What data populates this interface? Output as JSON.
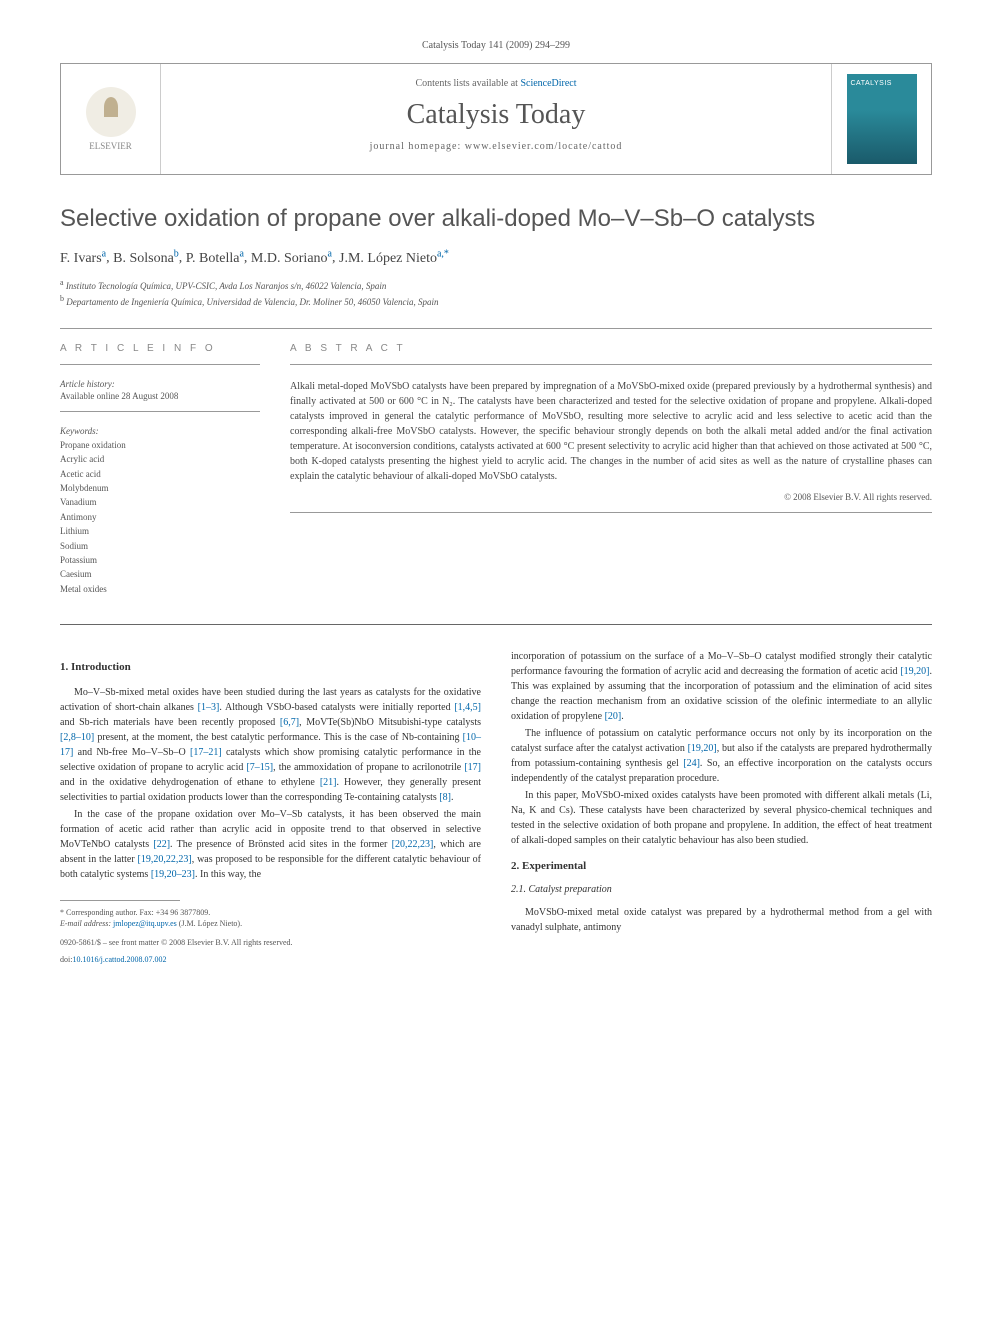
{
  "page_header": "Catalysis Today 141 (2009) 294–299",
  "header": {
    "publisher": "ELSEVIER",
    "contents_prefix": "Contents lists available at ",
    "contents_link": "ScienceDirect",
    "journal_title": "Catalysis Today",
    "homepage_prefix": "journal homepage: ",
    "homepage_url": "www.elsevier.com/locate/cattod"
  },
  "article": {
    "title": "Selective oxidation of propane over alkali-doped Mo–V–Sb–O catalysts",
    "authors_html": "F. Ivars|a|, B. Solsona|b|, P. Botella|a|, M.D. Soriano|a|, J.M. López Nieto|a,*|",
    "authors": [
      {
        "name": "F. Ivars",
        "aff": "a"
      },
      {
        "name": "B. Solsona",
        "aff": "b"
      },
      {
        "name": "P. Botella",
        "aff": "a"
      },
      {
        "name": "M.D. Soriano",
        "aff": "a"
      },
      {
        "name": "J.M. López Nieto",
        "aff": "a,*"
      }
    ],
    "affiliations": [
      {
        "sup": "a",
        "text": "Instituto Tecnología Química, UPV-CSIC, Avda Los Naranjos s/n, 46022 Valencia, Spain"
      },
      {
        "sup": "b",
        "text": "Departamento de Ingeniería Química, Universidad de Valencia, Dr. Moliner 50, 46050 Valencia, Spain"
      }
    ]
  },
  "info": {
    "heading": "A R T I C L E   I N F O",
    "history_label": "Article history:",
    "history_text": "Available online 28 August 2008",
    "keywords_label": "Keywords:",
    "keywords": [
      "Propane oxidation",
      "Acrylic acid",
      "Acetic acid",
      "Molybdenum",
      "Vanadium",
      "Antimony",
      "Lithium",
      "Sodium",
      "Potassium",
      "Caesium",
      "Metal oxides"
    ]
  },
  "abstract": {
    "heading": "A B S T R A C T",
    "text": "Alkali metal-doped MoVSbO catalysts have been prepared by impregnation of a MoVSbO-mixed oxide (prepared previously by a hydrothermal synthesis) and finally activated at 500 or 600 °C in N₂. The catalysts have been characterized and tested for the selective oxidation of propane and propylene. Alkali-doped catalysts improved in general the catalytic performance of MoVSbO, resulting more selective to acrylic acid and less selective to acetic acid than the corresponding alkali-free MoVSbO catalysts. However, the specific behaviour strongly depends on both the alkali metal added and/or the final activation temperature. At isoconversion conditions, catalysts activated at 600 °C present selectivity to acrylic acid higher than that achieved on those activated at 500 °C, both K-doped catalysts presenting the highest yield to acrylic acid. The changes in the number of acid sites as well as the nature of crystalline phases can explain the catalytic behaviour of alkali-doped MoVSbO catalysts.",
    "copyright": "© 2008 Elsevier B.V. All rights reserved."
  },
  "body": {
    "intro_heading": "1. Introduction",
    "intro_p1": "Mo–V–Sb-mixed metal oxides have been studied during the last years as catalysts for the oxidative activation of short-chain alkanes [1–3]. Although VSbO-based catalysts were initially reported [1,4,5] and Sb-rich materials have been recently proposed [6,7], MoVTe(Sb)NbO Mitsubishi-type catalysts [2,8–10] present, at the moment, the best catalytic performance. This is the case of Nb-containing [10–17] and Nb-free Mo–V–Sb–O [17–21] catalysts which show promising catalytic performance in the selective oxidation of propane to acrylic acid [7–15], the ammoxidation of propane to acrilonotrile [17] and in the oxidative dehydrogenation of ethane to ethylene [21]. However, they generally present selectivities to partial oxidation products lower than the corresponding Te-containing catalysts [8].",
    "intro_p2": "In the case of the propane oxidation over Mo–V–Sb catalysts, it has been observed the main formation of acetic acid rather than acrylic acid in opposite trend to that observed in selective MoVTeNbO catalysts [22]. The presence of Brönsted acid sites in the former [20,22,23], which are absent in the latter [19,20,22,23], was proposed to be responsible for the different catalytic behaviour of both catalytic systems [19,20–23]. In this way, the",
    "intro_p3": "incorporation of potassium on the surface of a Mo–V–Sb–O catalyst modified strongly their catalytic performance favouring the formation of acrylic acid and decreasing the formation of acetic acid [19,20]. This was explained by assuming that the incorporation of potassium and the elimination of acid sites change the reaction mechanism from an oxidative scission of the olefinic intermediate to an allylic oxidation of propylene [20].",
    "intro_p4": "The influence of potassium on catalytic performance occurs not only by its incorporation on the catalyst surface after the catalyst activation [19,20], but also if the catalysts are prepared hydrothermally from potassium-containing synthesis gel [24]. So, an effective incorporation on the catalysts occurs independently of the catalyst preparation procedure.",
    "intro_p5": "In this paper, MoVSbO-mixed oxides catalysts have been promoted with different alkali metals (Li, Na, K and Cs). These catalysts have been characterized by several physico-chemical techniques and tested in the selective oxidation of both propane and propylene. In addition, the effect of heat treatment of alkali-doped samples on their catalytic behaviour has also been studied.",
    "exp_heading": "2. Experimental",
    "exp_sub": "2.1. Catalyst preparation",
    "exp_p1": "MoVSbO-mixed metal oxide catalyst was prepared by a hydrothermal method from a gel with vanadyl sulphate, antimony"
  },
  "footnote": {
    "corr": "* Corresponding author. Fax: +34 96 3877809.",
    "email_label": "E-mail address: ",
    "email": "jmlopez@itq.upv.es",
    "email_suffix": " (J.M. López Nieto)."
  },
  "footer": {
    "line1": "0920-5861/$ – see front matter © 2008 Elsevier B.V. All rights reserved.",
    "line2": "doi:10.1016/j.cattod.2008.07.002"
  },
  "colors": {
    "link": "#0066aa",
    "text": "#333333",
    "muted": "#555555",
    "border": "#999999"
  }
}
